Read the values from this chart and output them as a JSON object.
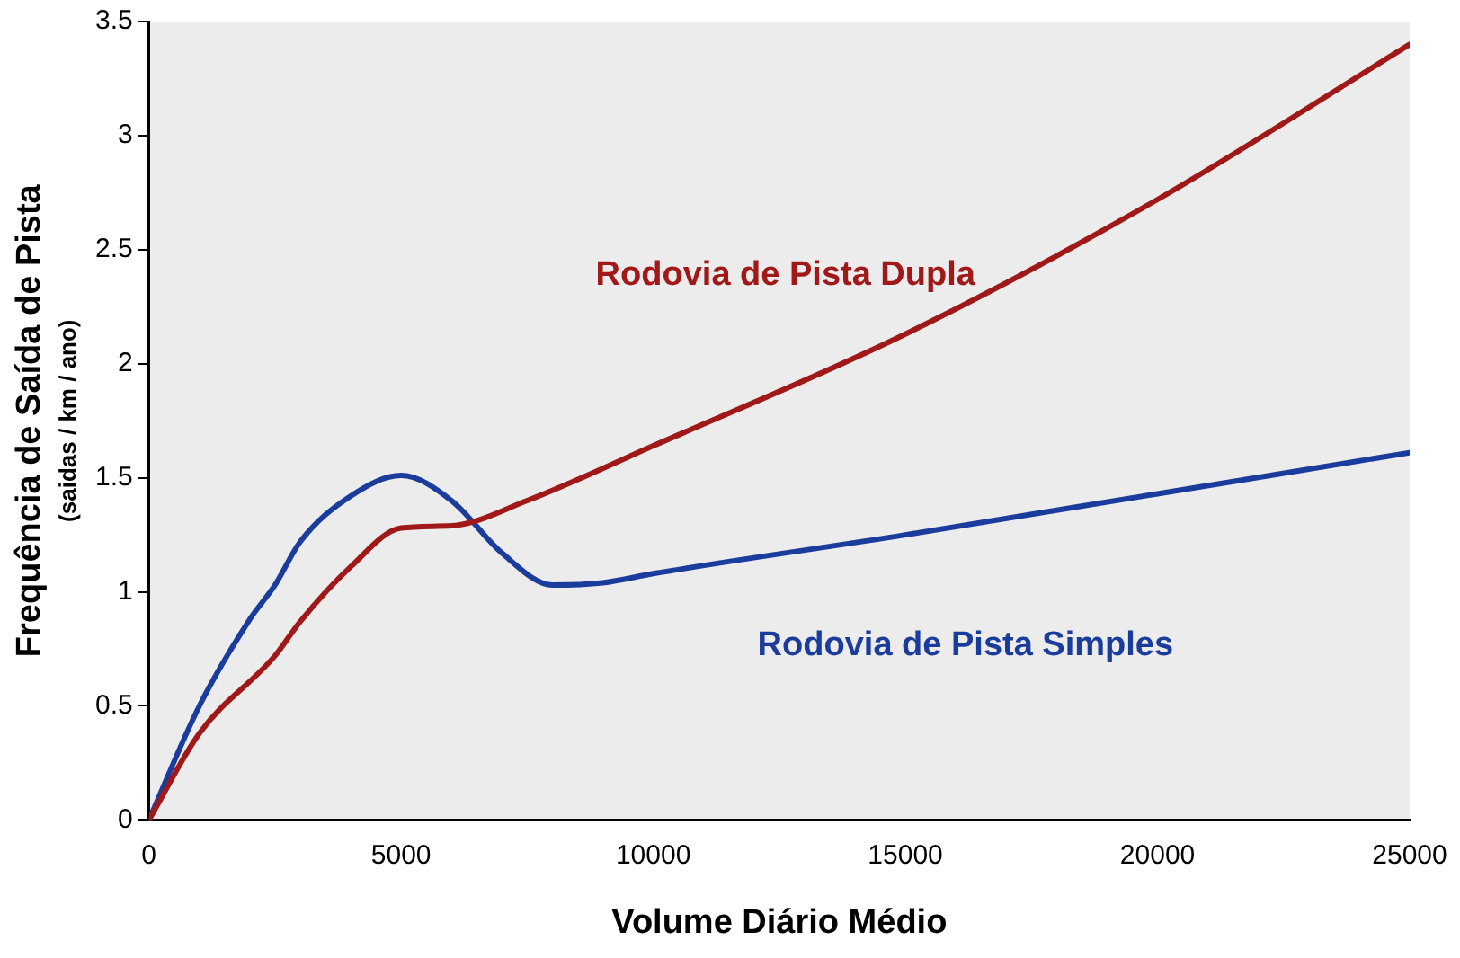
{
  "chart_data": {
    "type": "line",
    "xlabel": "Volume Diário Médio",
    "ylabel": "Frequência de Saída de Pista\n(saidas / km / ano)",
    "xlim": [
      0,
      25000
    ],
    "xticks": [
      0,
      5000,
      10000,
      15000,
      20000,
      25000
    ],
    "ylim": [
      0,
      3.5
    ],
    "yticks": [
      0,
      0.5,
      1,
      1.5,
      2,
      2.5,
      3,
      3.5
    ],
    "grid": false,
    "legend": false,
    "marker": "none",
    "line_style": "solid",
    "series": [
      {
        "name": "Rodovia de Pista Dupla",
        "color": "#a01818",
        "x": [
          0,
          1000,
          2500,
          3000,
          4000,
          5000,
          6000,
          7500,
          10000,
          15000,
          20000,
          25000
        ],
        "values": [
          0,
          0.38,
          0.72,
          0.87,
          1.11,
          1.28,
          1.29,
          1.4,
          1.64,
          2.13,
          2.72,
          3.4
        ]
      },
      {
        "name": "Rodovia de Pista Simples",
        "color": "#1a3c9c",
        "x": [
          0,
          1000,
          2000,
          2500,
          3000,
          4000,
          5000,
          6000,
          7000,
          8000,
          9000,
          10000,
          15000,
          20000,
          25000
        ],
        "values": [
          0,
          0.5,
          0.88,
          1.03,
          1.22,
          1.42,
          1.51,
          1.4,
          1.17,
          1.03,
          1.04,
          1.08,
          1.25,
          1.43,
          1.61
        ]
      }
    ]
  }
}
